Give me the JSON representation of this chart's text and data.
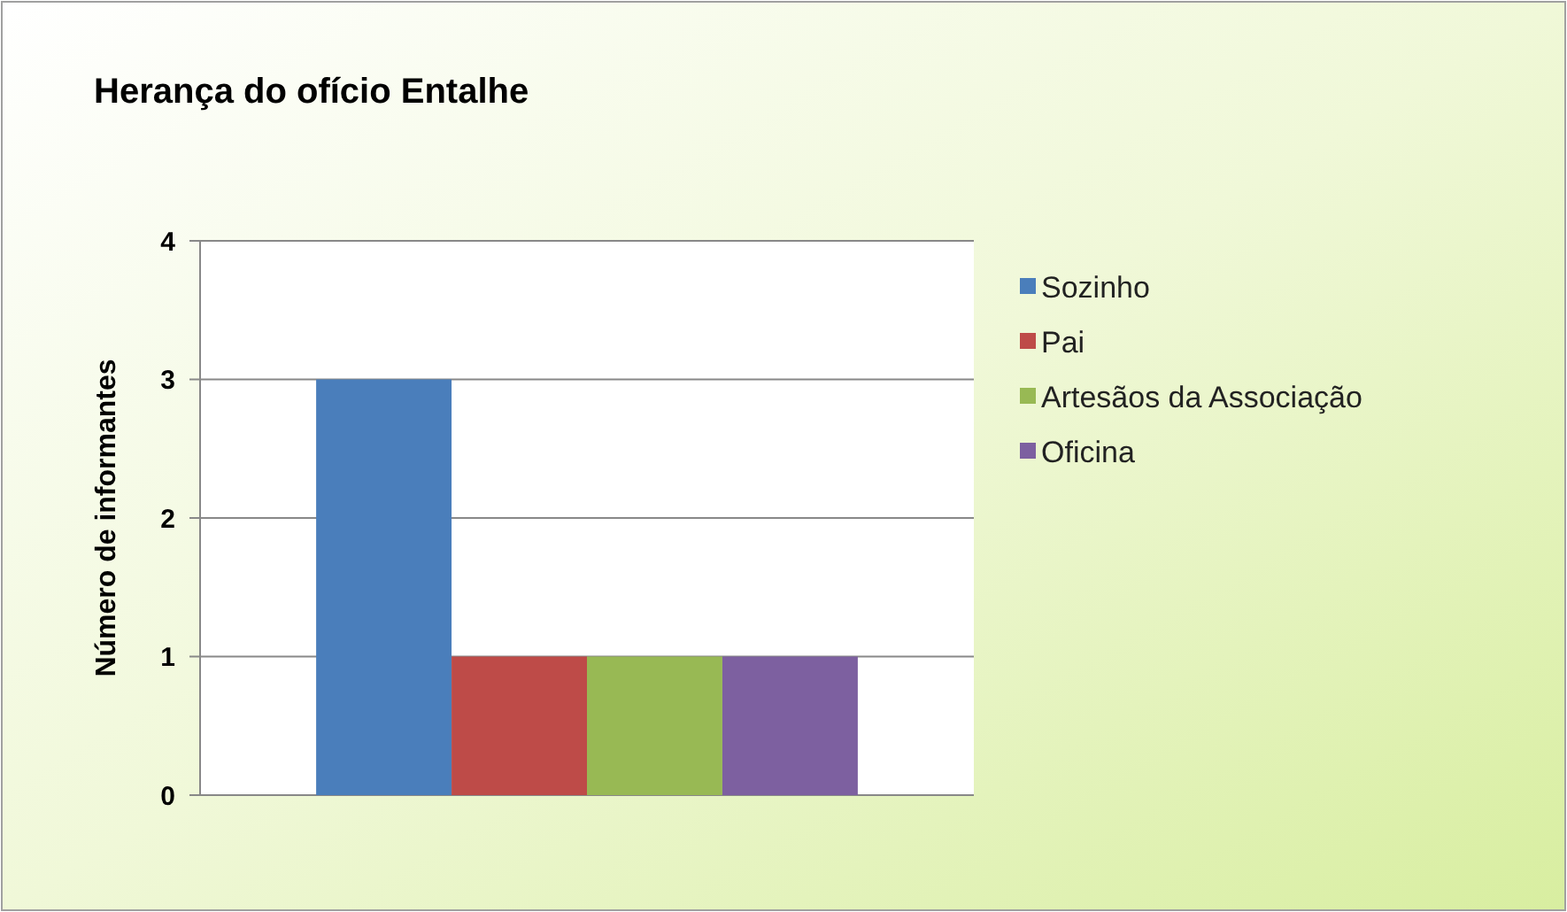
{
  "chart_data": {
    "type": "bar",
    "title": "Herança do ofício  Entalhe",
    "ylabel": "Número de informantes",
    "categories": [
      null
    ],
    "series": [
      {
        "name": "Sozinho",
        "color": "#4a7ebb",
        "values": [
          3
        ]
      },
      {
        "name": "Pai",
        "color": "#be4b48",
        "values": [
          1
        ]
      },
      {
        "name": "Artesãos da Associação",
        "color": "#98b954",
        "values": [
          1
        ]
      },
      {
        "name": "Oficina",
        "color": "#7d60a0",
        "values": [
          1
        ]
      }
    ],
    "ylim": [
      0,
      4
    ],
    "yticks": [
      0,
      1,
      2,
      3,
      4
    ],
    "grid": "y",
    "legend": "right"
  }
}
